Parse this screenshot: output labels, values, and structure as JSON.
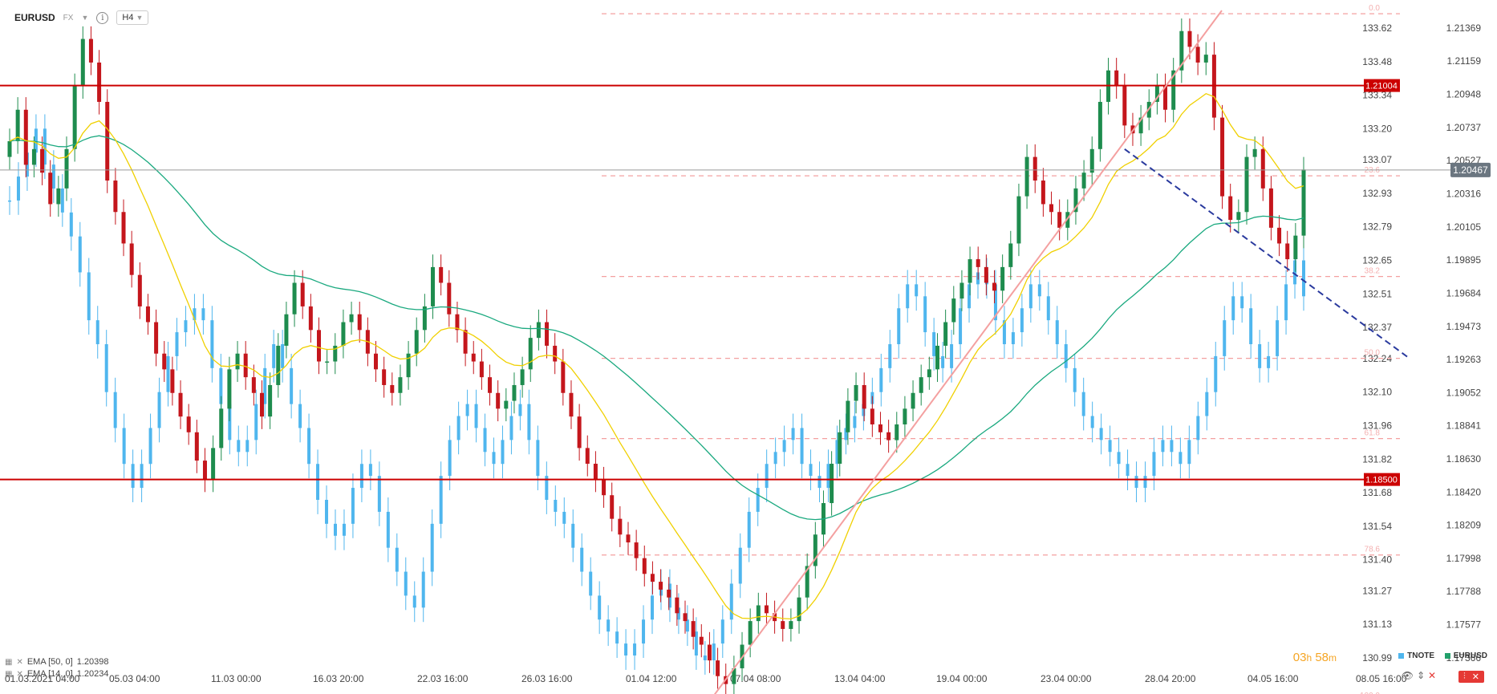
{
  "header": {
    "symbol": "EURUSD",
    "market": "FX",
    "timeframe": "H4"
  },
  "indicators": [
    {
      "label": "EMA [50, 0]",
      "value": "1.20398",
      "color": "#1aa97f"
    },
    {
      "label": "EMA [14, 0]",
      "value": "1.20234",
      "color": "#f0d000"
    }
  ],
  "countdown": {
    "hours": "03",
    "h_unit": "h",
    "minutes": "58",
    "m_unit": "m"
  },
  "legend": [
    {
      "label": "TNOTE",
      "color": "#4fb6ee"
    },
    {
      "label": "EURUSD",
      "color": "#22a06b"
    }
  ],
  "chart_data": {
    "type": "candlestick",
    "colors": {
      "up": "#1e8c4e",
      "down": "#c4161c",
      "overlay": "#4fb6ee",
      "ema50": "#1aa97f",
      "ema14": "#f0d000",
      "level": "#cc0000",
      "fib": "#f4a0a0",
      "trend_up": "#f4a0a0",
      "trend_down": "#2a3a9e"
    },
    "y_right": {
      "ticks": [
        "1.21369",
        "1.21159",
        "1.20948",
        "1.20737",
        "1.20527",
        "1.20316",
        "1.20105",
        "1.19895",
        "1.19684",
        "1.19473",
        "1.19263",
        "1.19052",
        "1.18841",
        "1.18630",
        "1.18420",
        "1.18209",
        "1.17998",
        "1.17788",
        "1.17577",
        "1.17366"
      ],
      "min": 1.17366,
      "max": 1.21369
    },
    "y_left": {
      "ticks": [
        "133.62",
        "133.48",
        "133.34",
        "133.20",
        "133.07",
        "132.93",
        "132.79",
        "132.65",
        "132.51",
        "132.37",
        "132.24",
        "132.10",
        "131.96",
        "131.82",
        "131.68",
        "131.54",
        "131.40",
        "131.27",
        "131.13",
        "130.99"
      ],
      "min": 130.99,
      "max": 133.62
    },
    "x_ticks": [
      "01.03.2021  04:00",
      "05.03  04:00",
      "11.03  00:00",
      "16.03  20:00",
      "22.03  16:00",
      "26.03  16:00",
      "01.04  12:00",
      "07.04  08:00",
      "13.04  04:00",
      "19.04  00:00",
      "23.04  00:00",
      "28.04  20:00",
      "04.05  16:00",
      "08.05  16:00"
    ],
    "current_price": "1.20467",
    "levels": [
      {
        "label": "1.21004",
        "price": 1.21004
      },
      {
        "label": "1.18500",
        "price": 1.185
      }
    ],
    "fib_levels": [
      {
        "label": "0.0",
        "price": 1.2146
      },
      {
        "label": "23.6",
        "price": 1.2043
      },
      {
        "label": "38.2",
        "price": 1.1979
      },
      {
        "label": "50.0",
        "price": 1.1927
      },
      {
        "label": "61.8",
        "price": 1.1876
      },
      {
        "label": "78.6",
        "price": 1.1802
      },
      {
        "label": "100.0",
        "price": 1.1709
      }
    ],
    "eurusd_closes": [
      1.2065,
      1.2085,
      1.205,
      1.206,
      1.2045,
      1.2025,
      1.2035,
      1.206,
      1.21,
      1.213,
      1.2115,
      1.209,
      1.204,
      1.202,
      1.2,
      1.198,
      1.196,
      1.195,
      1.193,
      1.192,
      1.1905,
      1.189,
      1.188,
      1.1862,
      1.185,
      1.187,
      1.1895,
      1.192,
      1.193,
      1.1915,
      1.1905,
      1.189,
      1.191,
      1.1935,
      1.1955,
      1.1975,
      1.196,
      1.1945,
      1.1925,
      1.1925,
      1.1935,
      1.195,
      1.1955,
      1.1945,
      1.193,
      1.192,
      1.191,
      1.1905,
      1.1915,
      1.193,
      1.1945,
      1.196,
      1.1985,
      1.1975,
      1.1955,
      1.1945,
      1.193,
      1.1925,
      1.1915,
      1.1905,
      1.1895,
      1.19,
      1.191,
      1.192,
      1.194,
      1.195,
      1.1935,
      1.1925,
      1.1905,
      1.189,
      1.187,
      1.186,
      1.185,
      1.184,
      1.1825,
      1.1815,
      1.181,
      1.18,
      1.179,
      1.1785,
      1.178,
      1.1775,
      1.1765,
      1.176,
      1.175,
      1.1745,
      1.1735,
      1.1725,
      1.172,
      1.173,
      1.1745,
      1.176,
      1.177,
      1.1765,
      1.176,
      1.1755,
      1.176,
      1.1775,
      1.1795,
      1.1815,
      1.1835,
      1.186,
      1.188,
      1.19,
      1.191,
      1.1895,
      1.1885,
      1.188,
      1.1875,
      1.1885,
      1.1895,
      1.1905,
      1.1915,
      1.192,
      1.1935,
      1.195,
      1.1965,
      1.1975,
      1.199,
      1.1985,
      1.1975,
      1.197,
      1.1985,
      1.2,
      1.203,
      1.2055,
      1.204,
      1.2025,
      1.202,
      1.201,
      1.202,
      1.2035,
      1.2045,
      1.206,
      1.209,
      1.211,
      1.21,
      1.2075,
      1.207,
      1.208,
      1.209,
      1.21,
      1.2085,
      1.211,
      1.2135,
      1.2125,
      1.2115,
      1.212,
      1.208,
      1.203,
      1.2015,
      1.202,
      1.2055,
      1.206,
      1.2035,
      1.201,
      1.2,
      1.199,
      1.2005,
      1.2047
    ],
    "tnote_closes": [
      132.9,
      133.0,
      133.1,
      133.2,
      133.05,
      132.95,
      132.85,
      132.75,
      132.6,
      132.4,
      132.3,
      132.1,
      131.95,
      131.8,
      131.7,
      131.8,
      131.95,
      132.1,
      132.25,
      132.35,
      132.4,
      132.45,
      132.4,
      132.2,
      132.05,
      131.9,
      131.85,
      131.9,
      132.05,
      132.2,
      132.3,
      132.2,
      132.05,
      131.95,
      131.8,
      131.65,
      131.55,
      131.5,
      131.55,
      131.7,
      131.8,
      131.75,
      131.6,
      131.45,
      131.35,
      131.25,
      131.2,
      131.35,
      131.55,
      131.75,
      131.9,
      132.0,
      132.05,
      131.95,
      131.85,
      131.8,
      131.9,
      132.0,
      132.05,
      131.9,
      131.75,
      131.65,
      131.6,
      131.55,
      131.45,
      131.35,
      131.25,
      131.15,
      131.1,
      131.05,
      131.0,
      131.05,
      131.15,
      131.25,
      131.3,
      131.2,
      131.15,
      131.1,
      131.0,
      130.98,
      131.05,
      131.15,
      131.3,
      131.45,
      131.6,
      131.7,
      131.8,
      131.85,
      131.9,
      131.95,
      131.8,
      131.75,
      131.7,
      131.8,
      131.9,
      131.95,
      132.0,
      132.05,
      132.1,
      132.2,
      132.3,
      132.45,
      132.55,
      132.5,
      132.35,
      132.25,
      132.2,
      132.3,
      132.45,
      132.55,
      132.6,
      132.55,
      132.4,
      132.3,
      132.35,
      132.45,
      132.55,
      132.5,
      132.4,
      132.3,
      132.2,
      132.1,
      132.0,
      131.95,
      131.9,
      131.85,
      131.8,
      131.75,
      131.7,
      131.75,
      131.85,
      131.9,
      131.85,
      131.8,
      131.9,
      132.0,
      132.1,
      132.25,
      132.4,
      132.5,
      132.45,
      132.3,
      132.2,
      132.25,
      132.4,
      132.55,
      132.65,
      132.5
    ]
  }
}
